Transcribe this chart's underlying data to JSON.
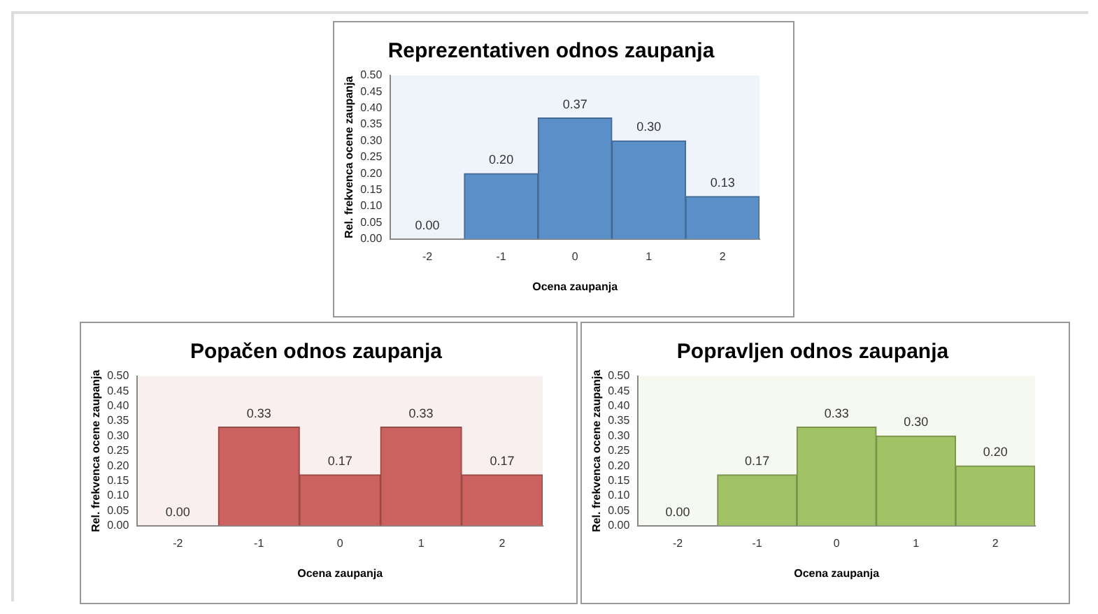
{
  "chart_data": [
    {
      "type": "bar",
      "title": "Reprezentativen odnos zaupanja",
      "xlabel": "Ocena zaupanja",
      "ylabel": "Rel. frekvenca ocene zaupanja",
      "categories": [
        "-2",
        "-1",
        "0",
        "1",
        "2"
      ],
      "values": [
        0,
        0.2,
        0.37,
        0.3,
        0.13
      ],
      "value_labels": [
        "0.00",
        "0.20",
        "0.37",
        "0.30",
        "0.13"
      ],
      "color": "#5b8fc8",
      "ylim": [
        0,
        0.5
      ],
      "yticks": [
        {
          "value": 0,
          "label": "0.00"
        },
        {
          "value": 0.05,
          "label": "0.05"
        },
        {
          "value": 0.1,
          "label": "0.10"
        },
        {
          "value": 0.15,
          "label": "0.15"
        },
        {
          "value": 0.2,
          "label": "0.20"
        },
        {
          "value": 0.25,
          "label": "0.25"
        },
        {
          "value": 0.3,
          "label": "0.30"
        },
        {
          "value": 0.35,
          "label": "0.35"
        },
        {
          "value": 0.4,
          "label": "0.40"
        },
        {
          "value": 0.45,
          "label": "0.45"
        },
        {
          "value": 0.5,
          "label": "0.50"
        }
      ],
      "grid": false,
      "legend": false
    },
    {
      "type": "bar",
      "title": "Popačen odnos zaupanja",
      "xlabel": "Ocena zaupanja",
      "ylabel": "Rel. frekvenca ocene zaupanja",
      "categories": [
        "-2",
        "-1",
        "0",
        "1",
        "2"
      ],
      "values": [
        0,
        0.33,
        0.17,
        0.33,
        0.17
      ],
      "value_labels": [
        "0.00",
        "0.33",
        "0.17",
        "0.33",
        "0.17"
      ],
      "color": "#cb625f",
      "ylim": [
        0,
        0.5
      ],
      "yticks": [
        {
          "value": 0,
          "label": "0.00"
        },
        {
          "value": 0.05,
          "label": "0.05"
        },
        {
          "value": 0.1,
          "label": "0.10"
        },
        {
          "value": 0.15,
          "label": "0.15"
        },
        {
          "value": 0.2,
          "label": "0.20"
        },
        {
          "value": 0.25,
          "label": "0.25"
        },
        {
          "value": 0.3,
          "label": "0.30"
        },
        {
          "value": 0.35,
          "label": "0.35"
        },
        {
          "value": 0.4,
          "label": "0.40"
        },
        {
          "value": 0.45,
          "label": "0.45"
        },
        {
          "value": 0.5,
          "label": "0.50"
        }
      ],
      "grid": false,
      "legend": false
    },
    {
      "type": "bar",
      "title": "Popravljen odnos zaupanja",
      "xlabel": "Ocena zaupanja",
      "ylabel": "Rel. frekvenca ocene zaupanja",
      "categories": [
        "-2",
        "-1",
        "0",
        "1",
        "2"
      ],
      "values": [
        0,
        0.17,
        0.33,
        0.3,
        0.2
      ],
      "value_labels": [
        "0.00",
        "0.17",
        "0.33",
        "0.30",
        "0.20"
      ],
      "color": "#a2c365",
      "ylim": [
        0,
        0.5
      ],
      "yticks": [
        {
          "value": 0,
          "label": "0.00"
        },
        {
          "value": 0.05,
          "label": "0.05"
        },
        {
          "value": 0.1,
          "label": "0.10"
        },
        {
          "value": 0.15,
          "label": "0.15"
        },
        {
          "value": 0.2,
          "label": "0.20"
        },
        {
          "value": 0.25,
          "label": "0.25"
        },
        {
          "value": 0.3,
          "label": "0.30"
        },
        {
          "value": 0.35,
          "label": "0.35"
        },
        {
          "value": 0.4,
          "label": "0.40"
        },
        {
          "value": 0.45,
          "label": "0.45"
        },
        {
          "value": 0.5,
          "label": "0.50"
        }
      ],
      "grid": false,
      "legend": false
    }
  ]
}
